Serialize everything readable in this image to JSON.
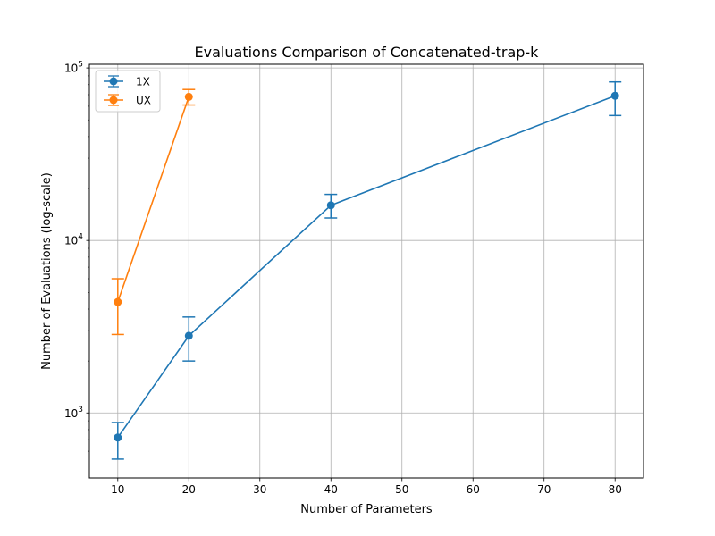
{
  "chart_data": {
    "type": "line",
    "title": "Evaluations Comparison of Concatenated-trap-k",
    "xlabel": "Number of Parameters",
    "ylabel": "Number of Evaluations (log-scale)",
    "y_scale": "log",
    "xlim": [
      6,
      84
    ],
    "ylim": [
      420,
      105000
    ],
    "x_ticks": [
      10,
      20,
      30,
      40,
      50,
      60,
      70,
      80
    ],
    "y_ticks": [
      {
        "value": 1000,
        "base": "10",
        "exp": "3"
      },
      {
        "value": 10000,
        "base": "10",
        "exp": "4"
      },
      {
        "value": 100000,
        "base": "10",
        "exp": "5"
      }
    ],
    "grid": true,
    "legend_position": "top-left",
    "series": [
      {
        "name": "1X",
        "color": "#1f77b4",
        "x": [
          10,
          20,
          40,
          80
        ],
        "y": [
          720,
          2800,
          16000,
          69000
        ],
        "err_low": [
          540,
          2000,
          13500,
          53000
        ],
        "err_high": [
          880,
          3600,
          18500,
          83000
        ]
      },
      {
        "name": "UX",
        "color": "#ff7f0e",
        "x": [
          10,
          20
        ],
        "y": [
          4400,
          68000
        ],
        "err_low": [
          2850,
          61000
        ],
        "err_high": [
          6000,
          75000
        ]
      }
    ]
  }
}
